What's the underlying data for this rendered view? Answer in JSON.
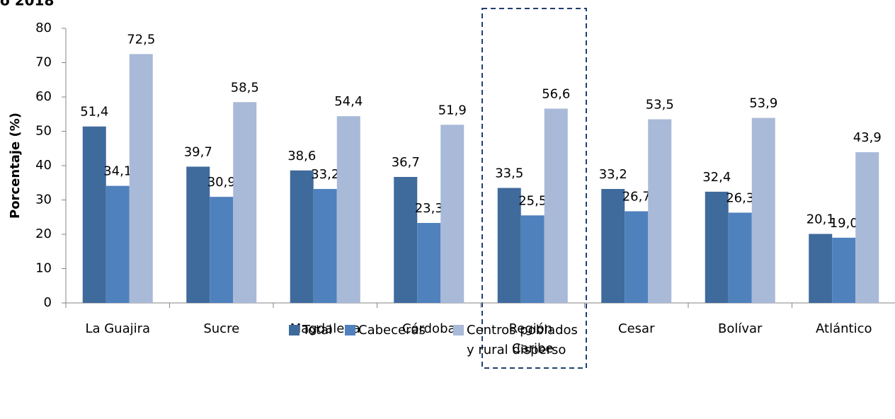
{
  "chart_data": {
    "type": "bar",
    "title": "o 2018",
    "y_label": "Porcentaje (%)",
    "categories": [
      "La Guajira",
      "Sucre",
      "Magdalena",
      "Córdoba",
      "Región Caribe",
      "Cesar",
      "Bolívar",
      "Atlántico"
    ],
    "series": [
      {
        "name": "Total",
        "color": "#3f6a9c",
        "values": [
          51.4,
          39.7,
          38.6,
          36.7,
          33.5,
          33.2,
          32.4,
          20.1
        ],
        "value_labels": [
          "51,4",
          "39,7",
          "38,6",
          "36,7",
          "33,5",
          "33,2",
          "32,4",
          "20,1"
        ]
      },
      {
        "name": "Cabeceras",
        "color": "#4f81bd",
        "values": [
          34.1,
          30.9,
          33.2,
          23.3,
          25.5,
          26.7,
          26.3,
          19.0
        ],
        "value_labels": [
          "34,1",
          "30,9",
          "33,2",
          "23,3",
          "25,5",
          "26,7",
          "26,3",
          "19,0"
        ]
      },
      {
        "name": "Centros poblados y rural disperso",
        "color": "#a9b9d8",
        "values": [
          72.5,
          58.5,
          54.4,
          51.9,
          56.6,
          53.5,
          53.9,
          43.9
        ],
        "value_labels": [
          "72,5",
          "58,5",
          "54,4",
          "51,9",
          "56,6",
          "53,5",
          "53,9",
          "43,9"
        ]
      }
    ],
    "ylim": [
      0,
      80
    ],
    "yticks": [
      0,
      10,
      20,
      30,
      40,
      50,
      60,
      70,
      80
    ],
    "legend": "bottom"
  }
}
